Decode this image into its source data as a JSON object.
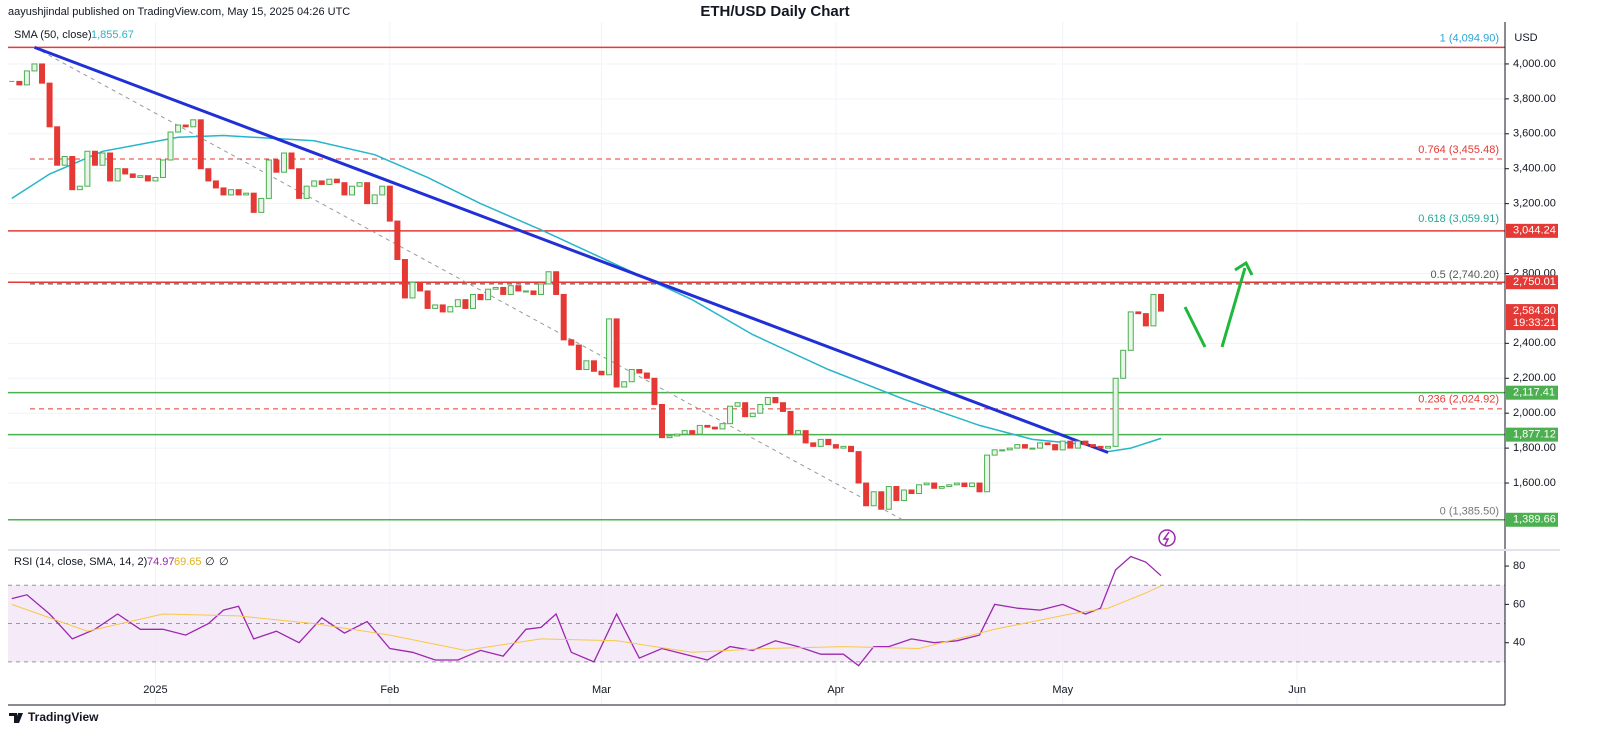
{
  "header": {
    "publisher": "aayushjindal published on TradingView.com, May 15, 2025 04:26 UTC",
    "brand": "TradingView"
  },
  "chart_data": [
    {
      "type": "candlestick",
      "title": "ETH/USD Daily Chart",
      "currency": "USD",
      "sma_label": "SMA (50, close)",
      "sma_value": 1855.67,
      "sma_value_label": "1,855.67",
      "sma_color": "#26b5c9",
      "xlim": [
        -0.5,
        197.5
      ],
      "xticks": [
        {
          "value": 19,
          "label": "2025"
        },
        {
          "value": 50,
          "label": "Feb"
        },
        {
          "value": 78,
          "label": "Mar"
        },
        {
          "value": 109,
          "label": "Apr"
        },
        {
          "value": 139,
          "label": "May"
        },
        {
          "value": 170,
          "label": "Jun"
        }
      ],
      "ylim": [
        1228,
        4097
      ],
      "yticks": [
        {
          "value": 1600,
          "label": "1,600.00"
        },
        {
          "value": 1800,
          "label": "1,800.00"
        },
        {
          "value": 2000,
          "label": "2,000.00"
        },
        {
          "value": 2200,
          "label": "2,200.00"
        },
        {
          "value": 2400,
          "label": "2,400.00"
        },
        {
          "value": 2800,
          "label": "2,800.00"
        },
        {
          "value": 3200,
          "label": "3,200.00"
        },
        {
          "value": 3400,
          "label": "3,400.00"
        },
        {
          "value": 3600,
          "label": "3,600.00"
        },
        {
          "value": 3800,
          "label": "3,800.00"
        },
        {
          "value": 4000,
          "label": "4,000.00"
        }
      ],
      "grid": true,
      "up_color": "#4caf50",
      "down_color": "#e53935",
      "closes": [
        3900,
        3880,
        3960,
        4000,
        3890,
        3640,
        3420,
        3470,
        3280,
        3300,
        3500,
        3420,
        3490,
        3330,
        3400,
        3370,
        3350,
        3360,
        3330,
        3350,
        3450,
        3610,
        3650,
        3640,
        3680,
        3400,
        3330,
        3290,
        3250,
        3280,
        3250,
        3260,
        3150,
        3230,
        3450,
        3380,
        3490,
        3400,
        3230,
        3300,
        3330,
        3310,
        3340,
        3320,
        3250,
        3300,
        3320,
        3200,
        3250,
        3300,
        3100,
        2880,
        2660,
        2750,
        2700,
        2600,
        2620,
        2580,
        2610,
        2650,
        2600,
        2680,
        2650,
        2710,
        2720,
        2680,
        2730,
        2700,
        2700,
        2680,
        2740,
        2810,
        2680,
        2420,
        2390,
        2250,
        2300,
        2240,
        2220,
        2540,
        2150,
        2180,
        2250,
        2230,
        2200,
        2050,
        1860,
        1870,
        1880,
        1900,
        1880,
        1930,
        1920,
        1910,
        1940,
        2040,
        2060,
        1980,
        2000,
        2050,
        2090,
        2060,
        2010,
        1880,
        1900,
        1830,
        1810,
        1850,
        1820,
        1800,
        1810,
        1780,
        1600,
        1470,
        1550,
        1450,
        1580,
        1500,
        1560,
        1540,
        1590,
        1600,
        1570,
        1580,
        1590,
        1600,
        1580,
        1600,
        1550,
        1760,
        1790,
        1790,
        1800,
        1820,
        1800,
        1800,
        1830,
        1820,
        1790,
        1840,
        1800,
        1840,
        1820,
        1810,
        1800,
        1810,
        2200,
        2360,
        2580,
        2570,
        2500,
        2680,
        2584.8
      ],
      "sma": {
        "x": [
          0,
          5,
          12,
          22,
          28,
          40,
          48,
          55,
          62,
          70,
          80,
          90,
          98,
          108,
          118,
          128,
          135,
          142,
          145,
          148,
          152
        ],
        "values": [
          3230,
          3370,
          3500,
          3580,
          3590,
          3560,
          3480,
          3350,
          3200,
          3050,
          2850,
          2650,
          2450,
          2250,
          2080,
          1930,
          1850,
          1820,
          1780,
          1800,
          1855.67
        ]
      },
      "trendline": {
        "x": [
          3,
          145
        ],
        "values": [
          4094.9,
          1775
        ],
        "color": "#2130d6"
      },
      "fib_line": {
        "x": [
          3,
          118
        ],
        "values": [
          4094.9,
          1385.5
        ],
        "color": "#999999"
      },
      "levels": [
        {
          "value": 4094.9,
          "color": "#e53935",
          "style": "solid"
        },
        {
          "value": 3455.48,
          "color": "#e53935",
          "style": "dashed"
        },
        {
          "value": 3044.24,
          "color": "#e53935",
          "style": "solid"
        },
        {
          "value": 2750.01,
          "color": "#e53935",
          "style": "solid"
        },
        {
          "value": 2740.2,
          "color": "#333333",
          "style": "dashed"
        },
        {
          "value": 2117.41,
          "color": "#4caf50",
          "style": "solid"
        },
        {
          "value": 2024.92,
          "color": "#e53935",
          "style": "dashed"
        },
        {
          "value": 1877.12,
          "color": "#4caf50",
          "style": "solid"
        },
        {
          "value": 1389.66,
          "color": "#4caf50",
          "style": "solid"
        }
      ],
      "fib": [
        {
          "value": 4094.9,
          "label": "1 (4,094.90)",
          "color": "#2fa5d6"
        },
        {
          "value": 3455.48,
          "label": "0.764 (3,455.48)",
          "color": "#e53935"
        },
        {
          "value": 3059.91,
          "label": "0.618 (3,059.91)",
          "color": "#26a69a"
        },
        {
          "value": 2740.2,
          "label": "0.5 (2,740.20)",
          "color": "#555555"
        },
        {
          "value": 2024.92,
          "label": "0.236 (2,024.92)",
          "color": "#e53935"
        },
        {
          "value": 1385.5,
          "label": "0 (1,385.50)",
          "color": "#777777"
        }
      ],
      "price_tags": [
        {
          "value": 3044.24,
          "label": "3,044.24",
          "color": "#e53935"
        },
        {
          "value": 2750.01,
          "label": "2,750.01",
          "color": "#e53935"
        },
        {
          "value": 2584.8,
          "label": "2,584.80",
          "color": "#e53935",
          "countdown": "19:33:21"
        },
        {
          "value": 2117.41,
          "label": "2,117.41",
          "color": "#4caf50"
        },
        {
          "value": 1877.12,
          "label": "1,877.12",
          "color": "#4caf50"
        },
        {
          "value": 1389.66,
          "label": "1,389.66",
          "color": "#4caf50"
        }
      ]
    },
    {
      "type": "line",
      "title": "RSI (14, close, SMA, 14, 2)",
      "rsi_value": 74.97,
      "ma_value": 69.65,
      "extra_labels": [
        "∅",
        "∅"
      ],
      "xlim": [
        -0.5,
        197.5
      ],
      "ylim": [
        21.6,
        86.8
      ],
      "yticks": [
        40,
        60,
        80
      ],
      "band": [
        30,
        70
      ],
      "dashed_levels": [
        30,
        50,
        70
      ],
      "series": [
        {
          "name": "RSI",
          "color": "#9c27b0",
          "x": [
            0,
            2,
            5,
            8,
            11,
            14,
            17,
            20,
            23,
            26,
            28,
            30,
            32,
            35,
            38,
            41,
            44,
            47,
            50,
            53,
            56,
            59,
            62,
            65,
            68,
            70,
            72,
            74,
            77,
            80,
            83,
            86,
            89,
            92,
            95,
            98,
            101,
            104,
            107,
            110,
            112,
            114,
            116,
            119,
            122,
            125,
            128,
            130,
            133,
            136,
            139,
            142,
            144,
            146,
            148,
            150,
            152
          ],
          "values": [
            63,
            65,
            55,
            42,
            47,
            55,
            47,
            47,
            44,
            50,
            57,
            59,
            42,
            46,
            40,
            53,
            45,
            51,
            37,
            35,
            31,
            31,
            36,
            33,
            47,
            48,
            55,
            35,
            30,
            55,
            32,
            37,
            34,
            31,
            38,
            36,
            41,
            38,
            34,
            34,
            28,
            38,
            38,
            42,
            40,
            41,
            44,
            60,
            58,
            57,
            60,
            55,
            58,
            78,
            85,
            82,
            74.97
          ]
        },
        {
          "name": "RSI-based MA",
          "color": "#f7c948",
          "x": [
            0,
            10,
            20,
            30,
            40,
            50,
            60,
            70,
            80,
            90,
            100,
            110,
            120,
            130,
            140,
            145,
            150,
            152
          ],
          "values": [
            60,
            46,
            55,
            54,
            50,
            44,
            36,
            42,
            41,
            35,
            37,
            38,
            37,
            47,
            55,
            58,
            66,
            69.65
          ]
        }
      ]
    }
  ]
}
